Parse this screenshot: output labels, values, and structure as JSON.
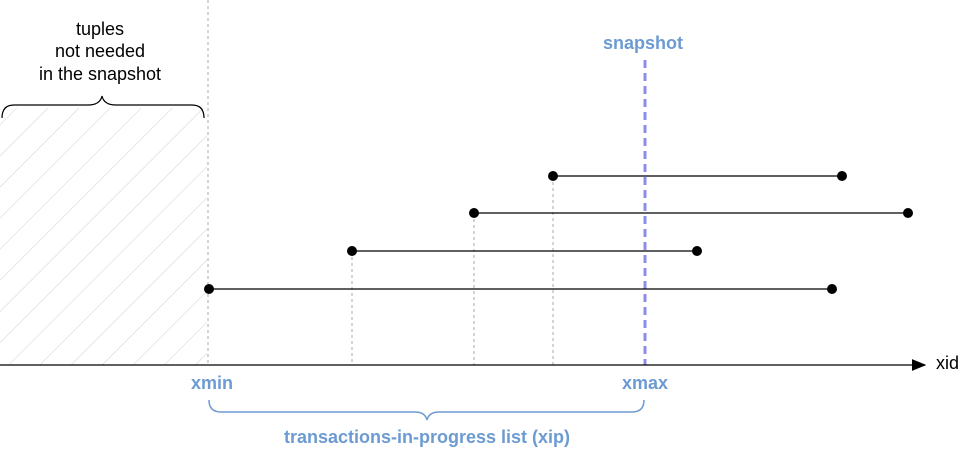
{
  "left_note": [
    "tuples",
    "not needed",
    "in the snapshot"
  ],
  "snapshot_label": "snapshot",
  "axis_label": "xid",
  "xmin_label": "xmin",
  "xmax_label": "xmax",
  "xip_label": "transactions-in-progress list (xip)"
}
